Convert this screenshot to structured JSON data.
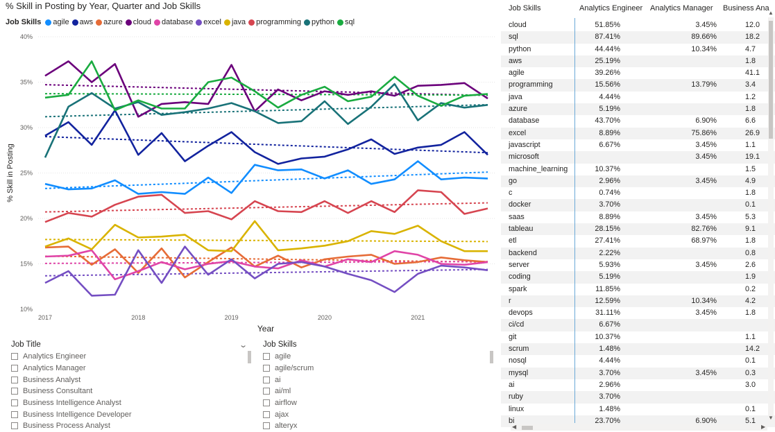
{
  "chart": {
    "title": "% Skill in Posting by Year, Quarter and Job Skills",
    "legend_title": "Job Skills",
    "ylabel": "% Skill in Posting",
    "xlabel": "Year"
  },
  "chart_data": {
    "type": "line",
    "title": "% Skill in Posting by Year, Quarter and Job Skills",
    "xlabel": "Year",
    "ylabel": "% Skill in Posting",
    "ylim": [
      10,
      40
    ],
    "yticks": [
      "10%",
      "15%",
      "20%",
      "25%",
      "30%",
      "35%",
      "40%"
    ],
    "xticks": [
      "2017",
      "2018",
      "2019",
      "2020",
      "2021"
    ],
    "x": [
      "2017 Q1",
      "2017 Q2",
      "2017 Q3",
      "2017 Q4",
      "2018 Q1",
      "2018 Q2",
      "2018 Q3",
      "2018 Q4",
      "2019 Q1",
      "2019 Q2",
      "2019 Q3",
      "2019 Q4",
      "2020 Q1",
      "2020 Q2",
      "2020 Q3",
      "2020 Q4",
      "2021 Q1",
      "2021 Q2",
      "2021 Q3",
      "2021 Q4"
    ],
    "trendlines": "dashed linear trend per series",
    "grid": true,
    "legend_position": "top-left",
    "series": [
      {
        "name": "agile",
        "color": "#118DFF",
        "values": [
          23.8,
          23.2,
          23.3,
          24.2,
          22.7,
          22.9,
          22.7,
          24.5,
          22.8,
          25.9,
          25.3,
          25.4,
          24.4,
          25.3,
          23.8,
          24.3,
          26.3,
          24.3,
          24.5,
          24.4
        ]
      },
      {
        "name": "aws",
        "color": "#12239E",
        "values": [
          29.1,
          30.6,
          28.1,
          31.9,
          27.0,
          29.4,
          26.3,
          28.0,
          29.5,
          27.3,
          26.0,
          26.6,
          26.8,
          27.6,
          28.7,
          27.1,
          27.8,
          28.1,
          29.5,
          27.0
        ]
      },
      {
        "name": "azure",
        "color": "#E66C37",
        "values": [
          16.8,
          16.9,
          14.9,
          16.6,
          14.0,
          16.7,
          13.5,
          15.2,
          16.8,
          14.7,
          15.9,
          14.6,
          15.5,
          15.8,
          16.0,
          15.0,
          15.2,
          15.7,
          15.4,
          15.2
        ]
      },
      {
        "name": "cloud",
        "color": "#6B007B",
        "values": [
          35.7,
          37.3,
          35.0,
          37.0,
          31.2,
          32.6,
          32.8,
          32.6,
          36.9,
          31.8,
          34.2,
          33.0,
          34.0,
          33.6,
          34.0,
          33.5,
          34.6,
          34.7,
          34.9,
          33.2
        ]
      },
      {
        "name": "database",
        "color": "#E044A7",
        "values": [
          15.8,
          15.9,
          16.5,
          13.3,
          14.2,
          15.2,
          14.4,
          15.0,
          15.3,
          14.7,
          14.5,
          15.4,
          14.7,
          15.5,
          15.2,
          16.4,
          16.0,
          15.0,
          14.9,
          15.2
        ]
      },
      {
        "name": "excel",
        "color": "#744EC2",
        "values": [
          12.9,
          14.2,
          11.5,
          11.6,
          16.5,
          12.9,
          16.9,
          13.8,
          15.5,
          13.4,
          15.0,
          15.2,
          14.7,
          13.9,
          13.2,
          11.9,
          13.9,
          14.8,
          14.6,
          14.3
        ]
      },
      {
        "name": "java",
        "color": "#D9B300",
        "values": [
          16.9,
          17.8,
          16.6,
          19.3,
          17.9,
          18.0,
          18.2,
          16.5,
          16.4,
          19.7,
          16.5,
          16.7,
          17.0,
          17.5,
          18.6,
          18.3,
          19.2,
          17.5,
          16.4,
          16.4
        ]
      },
      {
        "name": "programming",
        "color": "#D64550",
        "values": [
          19.6,
          20.6,
          20.2,
          21.5,
          22.4,
          22.6,
          20.6,
          20.8,
          19.9,
          21.9,
          20.8,
          20.7,
          21.9,
          20.6,
          21.9,
          20.7,
          23.1,
          22.9,
          20.5,
          21.1
        ]
      },
      {
        "name": "python",
        "color": "#197278",
        "values": [
          26.7,
          32.3,
          33.8,
          32.1,
          32.8,
          31.4,
          31.7,
          32.1,
          32.7,
          31.8,
          30.5,
          30.7,
          32.9,
          30.4,
          32.3,
          34.8,
          30.8,
          32.7,
          32.2,
          32.5
        ]
      },
      {
        "name": "sql",
        "color": "#1AAB40",
        "values": [
          33.3,
          33.6,
          37.3,
          31.9,
          33.0,
          32.1,
          32.1,
          35.0,
          35.5,
          34.0,
          32.2,
          33.6,
          34.5,
          32.9,
          33.4,
          35.6,
          33.5,
          32.4,
          33.5,
          33.7
        ]
      }
    ]
  },
  "job_title_slicer": {
    "header": "Job Title",
    "items": [
      "Analytics Engineer",
      "Analytics Manager",
      "Business Analyst",
      "Business Consultant",
      "Business Intelligence Analyst",
      "Business Intelligence Developer",
      "Business Process Analyst"
    ]
  },
  "job_skills_slicer": {
    "header": "Job Skills",
    "items": [
      "agile",
      "agile/scrum",
      "ai",
      "ai/ml",
      "airflow",
      "ajax",
      "alteryx"
    ]
  },
  "table": {
    "columns": [
      "Job Skills",
      "Analytics Engineer",
      "Analytics Manager",
      "Business Ana"
    ],
    "rows": [
      [
        "cloud",
        "51.85%",
        "3.45%",
        "12.0"
      ],
      [
        "sql",
        "87.41%",
        "89.66%",
        "18.2"
      ],
      [
        "python",
        "44.44%",
        "10.34%",
        "4.7"
      ],
      [
        "aws",
        "25.19%",
        "",
        "1.8"
      ],
      [
        "agile",
        "39.26%",
        "",
        "41.1"
      ],
      [
        "programming",
        "15.56%",
        "13.79%",
        "3.4"
      ],
      [
        "java",
        "4.44%",
        "",
        "1.2"
      ],
      [
        "azure",
        "5.19%",
        "",
        "1.8"
      ],
      [
        "database",
        "43.70%",
        "6.90%",
        "6.6"
      ],
      [
        "excel",
        "8.89%",
        "75.86%",
        "26.9"
      ],
      [
        "javascript",
        "6.67%",
        "3.45%",
        "1.1"
      ],
      [
        "microsoft",
        "",
        "3.45%",
        "19.1"
      ],
      [
        "machine_learning",
        "10.37%",
        "",
        "1.5"
      ],
      [
        "go",
        "2.96%",
        "3.45%",
        "4.9"
      ],
      [
        "c",
        "0.74%",
        "",
        "1.8"
      ],
      [
        "docker",
        "3.70%",
        "",
        "0.1"
      ],
      [
        "saas",
        "8.89%",
        "3.45%",
        "5.3"
      ],
      [
        "tableau",
        "28.15%",
        "82.76%",
        "9.1"
      ],
      [
        "etl",
        "27.41%",
        "68.97%",
        "1.8"
      ],
      [
        "backend",
        "2.22%",
        "",
        "0.8"
      ],
      [
        "server",
        "5.93%",
        "3.45%",
        "2.6"
      ],
      [
        "coding",
        "5.19%",
        "",
        "1.9"
      ],
      [
        "spark",
        "11.85%",
        "",
        "0.2"
      ],
      [
        "r",
        "12.59%",
        "10.34%",
        "4.2"
      ],
      [
        "devops",
        "31.11%",
        "3.45%",
        "1.8"
      ],
      [
        "ci/cd",
        "6.67%",
        "",
        ""
      ],
      [
        "git",
        "10.37%",
        "",
        "1.1"
      ],
      [
        "scrum",
        "1.48%",
        "",
        "14.2"
      ],
      [
        "nosql",
        "4.44%",
        "",
        "0.1"
      ],
      [
        "mysql",
        "3.70%",
        "3.45%",
        "0.3"
      ],
      [
        "ai",
        "2.96%",
        "",
        "3.0"
      ],
      [
        "ruby",
        "3.70%",
        "",
        ""
      ],
      [
        "linux",
        "1.48%",
        "",
        "0.1"
      ],
      [
        "bi",
        "23.70%",
        "6.90%",
        "5.1"
      ]
    ]
  }
}
